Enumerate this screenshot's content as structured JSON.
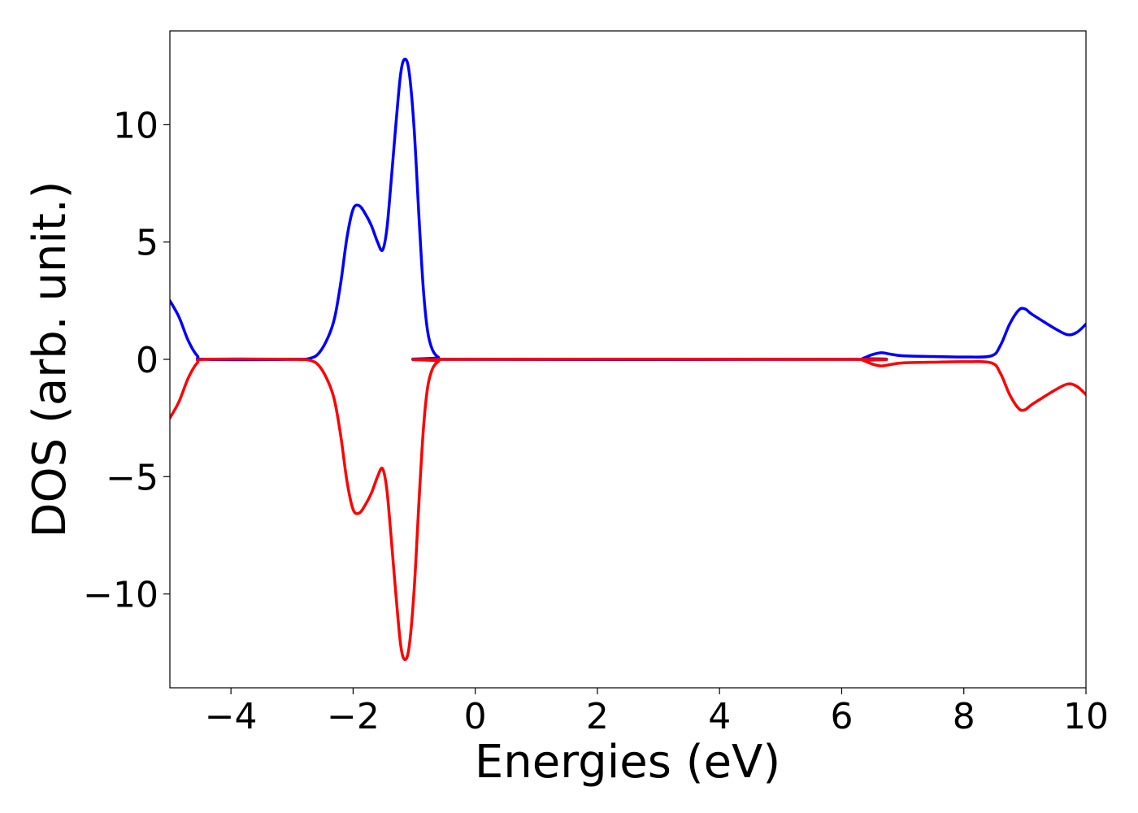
{
  "chart_data": {
    "type": "line",
    "title": "",
    "xlabel": "Energies (eV)",
    "ylabel": "DOS (arb. unit.)",
    "xlim": [
      -5,
      10
    ],
    "ylim": [
      -14,
      14
    ],
    "grid": false,
    "xticks": [
      {
        "value": -4,
        "label": "−4"
      },
      {
        "value": -2,
        "label": "−2"
      },
      {
        "value": 0,
        "label": "0"
      },
      {
        "value": 2,
        "label": "2"
      },
      {
        "value": 4,
        "label": "4"
      },
      {
        "value": 6,
        "label": "6"
      },
      {
        "value": 8,
        "label": "8"
      },
      {
        "value": 10,
        "label": "10"
      }
    ],
    "yticks": [
      {
        "value": -10,
        "label": "−10"
      },
      {
        "value": -5,
        "label": "−5"
      },
      {
        "value": 0,
        "label": "0"
      },
      {
        "value": 5,
        "label": "5"
      },
      {
        "value": 10,
        "label": "10"
      }
    ],
    "series": [
      {
        "color": "#0000ff",
        "points": [
          [
            -5.0,
            2.5
          ],
          [
            -4.85,
            1.8
          ],
          [
            -4.7,
            0.8
          ],
          [
            -4.55,
            0.15
          ],
          [
            -4.4,
            0.0
          ],
          [
            -3.0,
            0.0
          ],
          [
            -2.7,
            0.05
          ],
          [
            -2.55,
            0.3
          ],
          [
            -2.4,
            1.0
          ],
          [
            -2.3,
            1.8
          ],
          [
            -2.2,
            3.3
          ],
          [
            -2.1,
            5.2
          ],
          [
            -2.0,
            6.4
          ],
          [
            -1.9,
            6.55
          ],
          [
            -1.8,
            6.2
          ],
          [
            -1.7,
            5.7
          ],
          [
            -1.6,
            5.0
          ],
          [
            -1.52,
            4.65
          ],
          [
            -1.45,
            5.5
          ],
          [
            -1.38,
            7.5
          ],
          [
            -1.3,
            10.0
          ],
          [
            -1.22,
            12.2
          ],
          [
            -1.15,
            12.8
          ],
          [
            -1.08,
            12.2
          ],
          [
            -1.0,
            9.8
          ],
          [
            -0.92,
            6.0
          ],
          [
            -0.85,
            3.0
          ],
          [
            -0.78,
            1.2
          ],
          [
            -0.7,
            0.4
          ],
          [
            -0.6,
            0.08
          ],
          [
            -0.5,
            0.0
          ],
          [
            6.2,
            0.0
          ],
          [
            6.35,
            0.05
          ],
          [
            6.5,
            0.2
          ],
          [
            6.65,
            0.28
          ],
          [
            6.8,
            0.22
          ],
          [
            7.0,
            0.15
          ],
          [
            7.5,
            0.12
          ],
          [
            8.0,
            0.1
          ],
          [
            8.45,
            0.15
          ],
          [
            8.6,
            0.6
          ],
          [
            8.75,
            1.5
          ],
          [
            8.9,
            2.1
          ],
          [
            9.0,
            2.15
          ],
          [
            9.1,
            1.95
          ],
          [
            9.25,
            1.7
          ],
          [
            9.5,
            1.3
          ],
          [
            9.7,
            1.05
          ],
          [
            9.85,
            1.15
          ],
          [
            10.0,
            1.5
          ]
        ]
      },
      {
        "color": "#ff0000",
        "points": [
          [
            -5.0,
            -2.5
          ],
          [
            -4.85,
            -1.8
          ],
          [
            -4.7,
            -0.8
          ],
          [
            -4.55,
            -0.15
          ],
          [
            -4.4,
            0.0
          ],
          [
            -3.0,
            0.0
          ],
          [
            -2.7,
            -0.05
          ],
          [
            -2.55,
            -0.3
          ],
          [
            -2.4,
            -1.0
          ],
          [
            -2.3,
            -1.8
          ],
          [
            -2.2,
            -3.3
          ],
          [
            -2.1,
            -5.2
          ],
          [
            -2.0,
            -6.4
          ],
          [
            -1.9,
            -6.55
          ],
          [
            -1.8,
            -6.2
          ],
          [
            -1.7,
            -5.7
          ],
          [
            -1.6,
            -5.0
          ],
          [
            -1.52,
            -4.65
          ],
          [
            -1.45,
            -5.5
          ],
          [
            -1.38,
            -7.5
          ],
          [
            -1.3,
            -10.0
          ],
          [
            -1.22,
            -12.2
          ],
          [
            -1.15,
            -12.8
          ],
          [
            -1.08,
            -12.2
          ],
          [
            -1.0,
            -9.8
          ],
          [
            -0.92,
            -6.0
          ],
          [
            -0.85,
            -3.0
          ],
          [
            -0.78,
            -1.2
          ],
          [
            -0.7,
            -0.4
          ],
          [
            -0.6,
            -0.08
          ],
          [
            -0.5,
            0.0
          ],
          [
            6.2,
            0.0
          ],
          [
            6.35,
            -0.05
          ],
          [
            6.5,
            -0.2
          ],
          [
            6.65,
            -0.28
          ],
          [
            6.8,
            -0.22
          ],
          [
            7.0,
            -0.15
          ],
          [
            7.5,
            -0.12
          ],
          [
            8.0,
            -0.1
          ],
          [
            8.45,
            -0.15
          ],
          [
            8.6,
            -0.6
          ],
          [
            8.75,
            -1.5
          ],
          [
            8.9,
            -2.1
          ],
          [
            9.0,
            -2.15
          ],
          [
            9.1,
            -1.95
          ],
          [
            9.25,
            -1.7
          ],
          [
            9.5,
            -1.3
          ],
          [
            9.7,
            -1.05
          ],
          [
            9.85,
            -1.15
          ],
          [
            10.0,
            -1.5
          ]
        ]
      }
    ]
  }
}
